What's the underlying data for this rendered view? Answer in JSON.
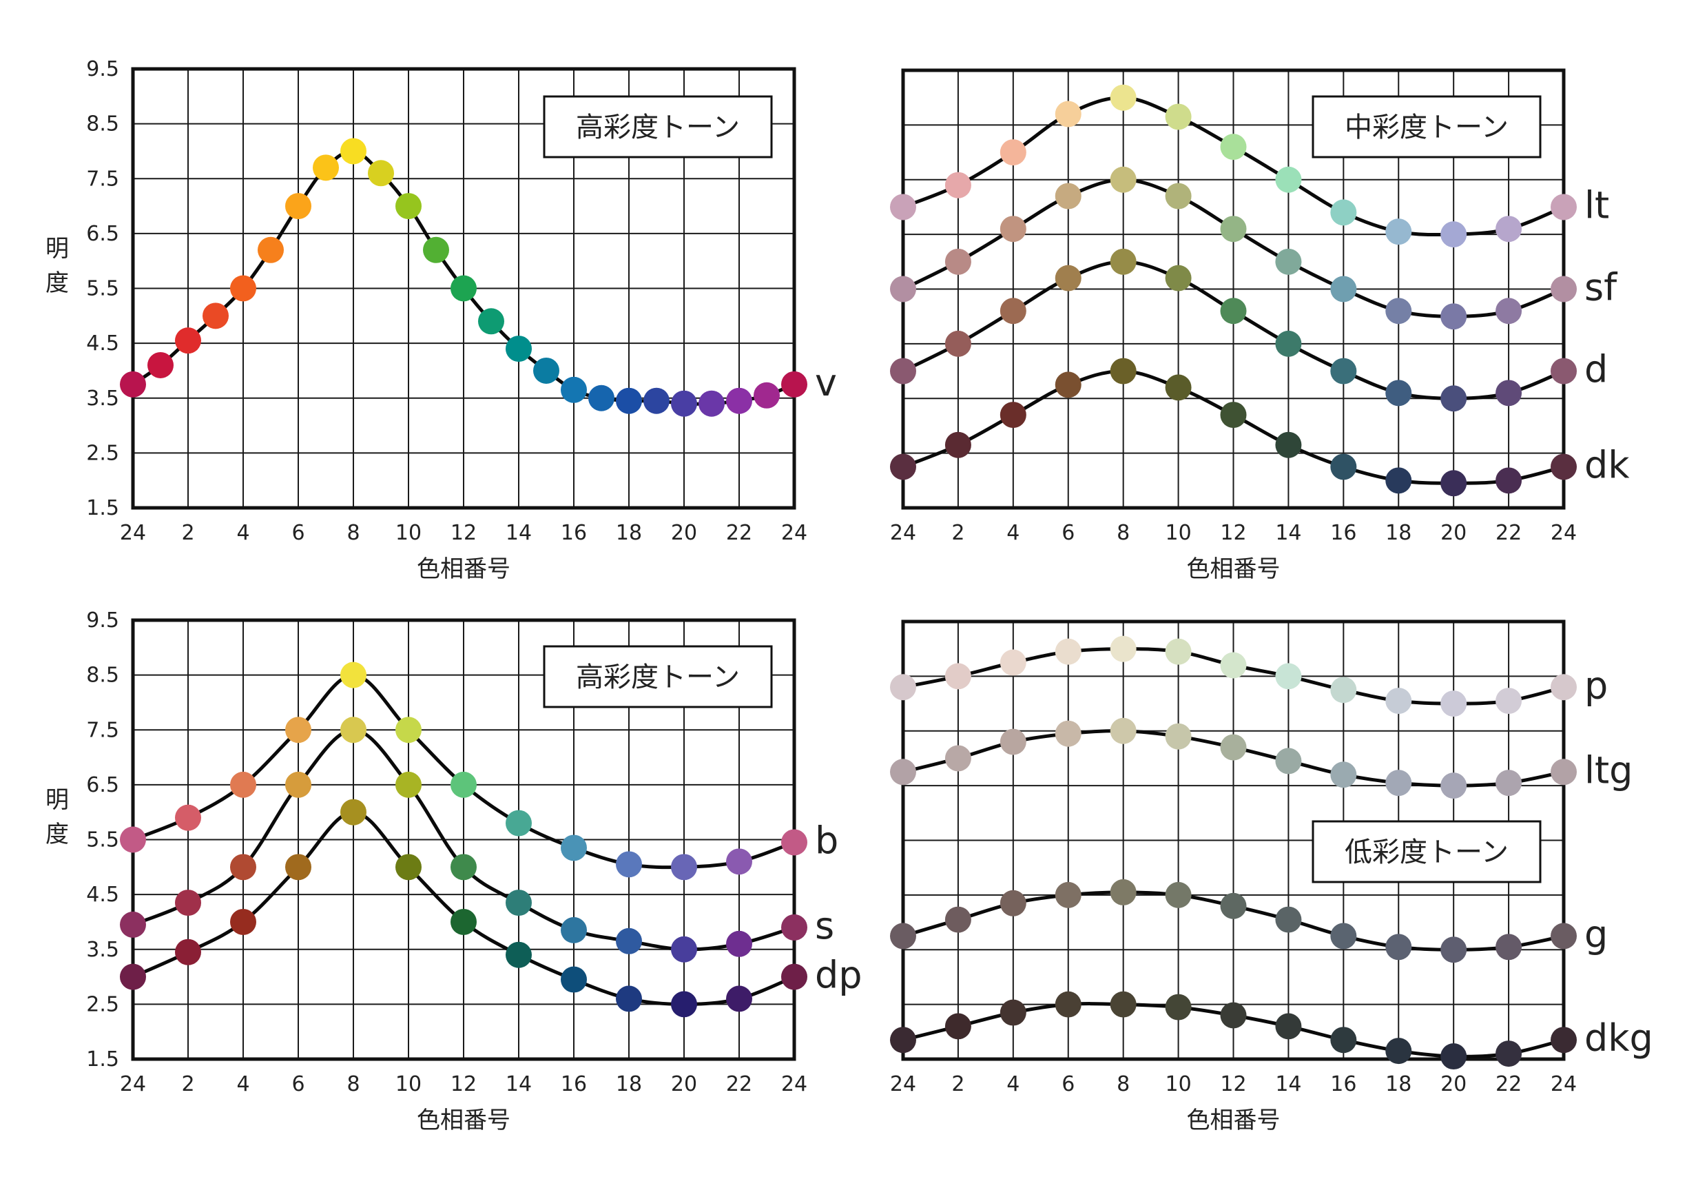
{
  "chart_data": [
    {
      "type": "line",
      "title": "高彩度トーン",
      "xlabel": "色相番号",
      "ylabel": "明度",
      "xlim": [
        0,
        24
      ],
      "ylim": [
        1.5,
        9.5
      ],
      "x_tick_labels": [
        "24",
        "2",
        "4",
        "6",
        "8",
        "10",
        "12",
        "14",
        "16",
        "18",
        "20",
        "22",
        "24"
      ],
      "y_tick_labels": [
        "9.5",
        "8.5",
        "7.5",
        "6.5",
        "5.5",
        "4.5",
        "3.5",
        "2.5",
        "1.5"
      ],
      "grid": true,
      "legend": "end-labels",
      "series": [
        {
          "name": "v",
          "x": [
            0,
            1,
            2,
            3,
            4,
            5,
            6,
            7,
            8,
            9,
            10,
            11,
            12,
            13,
            14,
            15,
            16,
            17,
            18,
            19,
            20,
            21,
            22,
            23,
            24
          ],
          "values": [
            3.75,
            4.1,
            4.55,
            5.0,
            5.5,
            6.2,
            7.0,
            7.7,
            8.0,
            7.6,
            7.0,
            6.2,
            5.5,
            4.9,
            4.4,
            4.0,
            3.65,
            3.5,
            3.45,
            3.45,
            3.4,
            3.4,
            3.45,
            3.55,
            3.75
          ],
          "colors": [
            "#b8144e",
            "#c8153f",
            "#e02c2c",
            "#ea4a25",
            "#f2601e",
            "#f6801c",
            "#fba41a",
            "#fbc318",
            "#f8dd22",
            "#d8d020",
            "#96c51e",
            "#52b033",
            "#1da451",
            "#0e9b72",
            "#008e8c",
            "#0b7ca2",
            "#1476b2",
            "#1665ae",
            "#1b4ea6",
            "#2c45a0",
            "#493ea4",
            "#6a37a8",
            "#8b30a6",
            "#a0288f",
            "#b8144e"
          ]
        }
      ]
    },
    {
      "type": "line",
      "title": "中彩度トーン",
      "xlabel": "色相番号",
      "ylabel": "",
      "xlim": [
        0,
        24
      ],
      "ylim": [
        1.5,
        9.5
      ],
      "x_tick_labels": [
        "24",
        "2",
        "4",
        "6",
        "8",
        "10",
        "12",
        "14",
        "16",
        "18",
        "20",
        "22",
        "24"
      ],
      "grid": true,
      "legend": "end-labels",
      "series": [
        {
          "name": "lt",
          "x": [
            0,
            2,
            4,
            6,
            8,
            10,
            12,
            14,
            16,
            18,
            20,
            22,
            24
          ],
          "values": [
            7.0,
            7.4,
            8.0,
            8.7,
            9.0,
            8.65,
            8.1,
            7.5,
            6.9,
            6.55,
            6.5,
            6.6,
            7.0
          ],
          "colors": [
            "#c9a2b8",
            "#e6a8aa",
            "#f4b59a",
            "#f6cf9a",
            "#ece48f",
            "#cfdc8c",
            "#a9e09a",
            "#9be0b8",
            "#8ed0c4",
            "#96b8d0",
            "#a4a8d4",
            "#b6a6cc",
            "#c9a2b8"
          ]
        },
        {
          "name": "sf",
          "x": [
            0,
            2,
            4,
            6,
            8,
            10,
            12,
            14,
            16,
            18,
            20,
            22,
            24
          ],
          "values": [
            5.5,
            6.0,
            6.6,
            7.2,
            7.5,
            7.2,
            6.6,
            6.0,
            5.5,
            5.1,
            5.0,
            5.1,
            5.5
          ],
          "colors": [
            "#b28fa2",
            "#b88a86",
            "#c19480",
            "#c6aa80",
            "#c6bd7c",
            "#b0b37a",
            "#94b586",
            "#80a99a",
            "#6f9fb0",
            "#7580a6",
            "#7a79a6",
            "#8e7aa2",
            "#b28fa2"
          ]
        },
        {
          "name": "d",
          "x": [
            0,
            2,
            4,
            6,
            8,
            10,
            12,
            14,
            16,
            18,
            20,
            22,
            24
          ],
          "values": [
            4.0,
            4.5,
            5.1,
            5.7,
            6.0,
            5.7,
            5.1,
            4.5,
            4.0,
            3.6,
            3.5,
            3.6,
            4.0
          ],
          "colors": [
            "#8a5970",
            "#955d5a",
            "#9c6a52",
            "#a07f4e",
            "#968c48",
            "#7f8a48",
            "#4f8a58",
            "#3d7a6a",
            "#3a6f7a",
            "#3f5d80",
            "#4a4f7c",
            "#5f4a78",
            "#8a5970"
          ]
        },
        {
          "name": "dk",
          "x": [
            0,
            2,
            4,
            6,
            8,
            10,
            12,
            14,
            16,
            18,
            20,
            22,
            24
          ],
          "values": [
            2.25,
            2.65,
            3.2,
            3.75,
            4.0,
            3.7,
            3.2,
            2.65,
            2.25,
            2.0,
            1.95,
            2.0,
            2.25
          ],
          "colors": [
            "#5a2f40",
            "#5a2a32",
            "#6a2e2a",
            "#7a5030",
            "#6a6028",
            "#5a5c2a",
            "#3f5233",
            "#2f4638",
            "#2f5264",
            "#283a5c",
            "#3a2e58",
            "#4a2e52",
            "#5a2f40"
          ]
        }
      ]
    },
    {
      "type": "line",
      "title": "高彩度トーン",
      "xlabel": "色相番号",
      "ylabel": "明度",
      "xlim": [
        0,
        24
      ],
      "ylim": [
        1.5,
        9.5
      ],
      "x_tick_labels": [
        "24",
        "2",
        "4",
        "6",
        "8",
        "10",
        "12",
        "14",
        "16",
        "18",
        "20",
        "22",
        "24"
      ],
      "y_tick_labels": [
        "9.5",
        "8.5",
        "7.5",
        "6.5",
        "5.5",
        "4.5",
        "3.5",
        "2.5",
        "1.5"
      ],
      "grid": true,
      "legend": "end-labels",
      "series": [
        {
          "name": "b",
          "x": [
            0,
            2,
            4,
            6,
            8,
            10,
            12,
            14,
            16,
            18,
            20,
            22,
            24
          ],
          "values": [
            5.5,
            5.9,
            6.5,
            7.5,
            8.5,
            7.5,
            6.5,
            5.8,
            5.35,
            5.05,
            5.0,
            5.1,
            5.45
          ],
          "colors": [
            "#c25a86",
            "#d55d68",
            "#e07a52",
            "#e6a44a",
            "#f2e23c",
            "#c6d84a",
            "#5dc47a",
            "#48a894",
            "#4a93b6",
            "#5a78bc",
            "#6866b6",
            "#8a5ab0",
            "#c25a86"
          ]
        },
        {
          "name": "s",
          "x": [
            0,
            2,
            4,
            6,
            8,
            10,
            12,
            14,
            16,
            18,
            20,
            22,
            24
          ],
          "values": [
            3.95,
            4.35,
            5.0,
            6.5,
            7.5,
            6.5,
            5.0,
            4.35,
            3.85,
            3.65,
            3.5,
            3.6,
            3.9
          ],
          "colors": [
            "#8c3060",
            "#a0304a",
            "#b04a32",
            "#d69c3c",
            "#d8c850",
            "#a8b424",
            "#3f8a4c",
            "#2e7e78",
            "#2e76a0",
            "#2f5aa0",
            "#483e9c",
            "#6e2e90",
            "#8c3060"
          ]
        },
        {
          "name": "dp",
          "x": [
            0,
            2,
            4,
            6,
            8,
            10,
            12,
            14,
            16,
            18,
            20,
            22,
            24
          ],
          "values": [
            3.0,
            3.45,
            4.0,
            5.0,
            6.0,
            5.0,
            4.0,
            3.4,
            2.95,
            2.6,
            2.5,
            2.6,
            3.0
          ],
          "colors": [
            "#6e1f48",
            "#8a1f35",
            "#962c1f",
            "#a06a1e",
            "#a69020",
            "#6c7c14",
            "#1c6630",
            "#0e5e56",
            "#0e4e7a",
            "#1e3a80",
            "#261e6e",
            "#3e1c68",
            "#6e1f48"
          ]
        }
      ]
    },
    {
      "type": "line",
      "title": "低彩度トーン",
      "xlabel": "色相番号",
      "ylabel": "",
      "xlim": [
        0,
        24
      ],
      "ylim": [
        1.5,
        9.5
      ],
      "x_tick_labels": [
        "24",
        "2",
        "4",
        "6",
        "8",
        "10",
        "12",
        "14",
        "16",
        "18",
        "20",
        "22",
        "24"
      ],
      "grid": true,
      "legend": "end-labels",
      "series": [
        {
          "name": "p",
          "x": [
            0,
            2,
            4,
            6,
            8,
            10,
            12,
            14,
            16,
            18,
            20,
            22,
            24
          ],
          "values": [
            8.3,
            8.5,
            8.75,
            8.95,
            9.0,
            8.95,
            8.7,
            8.5,
            8.25,
            8.05,
            8.0,
            8.05,
            8.3
          ],
          "colors": [
            "#d6c8cc",
            "#e2ccc8",
            "#ead8ce",
            "#eaddce",
            "#eae4cc",
            "#d6e0c0",
            "#d4e6cc",
            "#c8e4d6",
            "#c4d8d0",
            "#c6ccd6",
            "#cccad8",
            "#d2ccd6",
            "#d6c8cc"
          ]
        },
        {
          "name": "ltg",
          "x": [
            0,
            2,
            4,
            6,
            8,
            10,
            12,
            14,
            16,
            18,
            20,
            22,
            24
          ],
          "values": [
            6.75,
            7.0,
            7.3,
            7.45,
            7.5,
            7.4,
            7.2,
            6.95,
            6.7,
            6.55,
            6.5,
            6.55,
            6.75
          ],
          "colors": [
            "#b2a2a6",
            "#b8a8a6",
            "#b8a6a0",
            "#c8b8a8",
            "#cec8aa",
            "#c6c6aa",
            "#a8b09c",
            "#9aaaa4",
            "#9aaab0",
            "#a2a8b6",
            "#a6a6b6",
            "#aca4ae",
            "#b2a2a6"
          ]
        },
        {
          "name": "g",
          "x": [
            0,
            2,
            4,
            6,
            8,
            10,
            12,
            14,
            16,
            18,
            20,
            22,
            24
          ],
          "values": [
            3.75,
            4.05,
            4.35,
            4.5,
            4.55,
            4.5,
            4.3,
            4.05,
            3.75,
            3.55,
            3.5,
            3.55,
            3.75
          ],
          "colors": [
            "#6a5c62",
            "#6e5c5e",
            "#76625c",
            "#7e7064",
            "#7e7a66",
            "#747868",
            "#5e6862",
            "#5a6466",
            "#5a6470",
            "#5c6272",
            "#5e5e70",
            "#645a68",
            "#6a5c62"
          ]
        },
        {
          "name": "dkg",
          "x": [
            0,
            2,
            4,
            6,
            8,
            10,
            12,
            14,
            16,
            18,
            20,
            22,
            24
          ],
          "values": [
            1.85,
            2.1,
            2.35,
            2.5,
            2.5,
            2.45,
            2.3,
            2.1,
            1.85,
            1.65,
            1.55,
            1.6,
            1.85
          ],
          "colors": [
            "#3a2a32",
            "#3e2a2c",
            "#443430",
            "#4a4034",
            "#4a4434",
            "#444636",
            "#3a3c36",
            "#343a38",
            "#2e3a3e",
            "#2a3440",
            "#2a2e40",
            "#34303e",
            "#3a2a32"
          ]
        }
      ]
    }
  ]
}
